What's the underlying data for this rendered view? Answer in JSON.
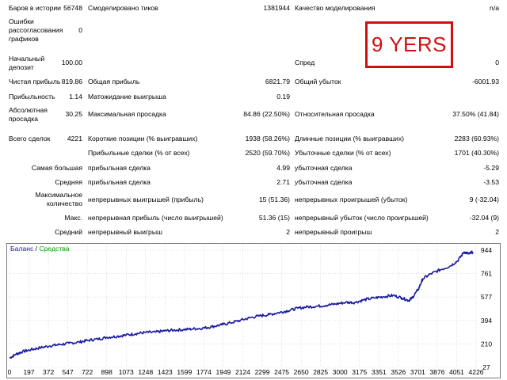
{
  "stamp": {
    "text": "9 YERS"
  },
  "report": {
    "bars_label": "Баров в истории",
    "bars": "56748",
    "ticks_label": "Смоделировано тиков",
    "ticks": "1381944",
    "quality_label": "Качество моделирования",
    "quality": "n/a",
    "errors_label": "Ошибки рассогласования графиков",
    "errors": "0",
    "deposit_label": "Начальный депозит",
    "deposit": "100.00",
    "spread_label": "Спред",
    "spread": "0",
    "netprofit_label": "Чистая прибыль",
    "netprofit": "819.86",
    "grossprofit_label": "Общая прибыль",
    "grossprofit": "6821.79",
    "grossloss_label": "Общий убыток",
    "grossloss": "-6001.93",
    "pf_label": "Прибыльность",
    "pf": "1.14",
    "exp_label": "Матожидание выигрыша",
    "exp": "0.19",
    "absdd_label": "Абсолютная просадка",
    "absdd": "30.25",
    "maxdd_label": "Максимальная просадка",
    "maxdd": "84.86 (22.50%)",
    "reldd_label": "Относительная просадка",
    "reldd": "37.50% (41.84)",
    "total_label": "Всего сделок",
    "total": "4221",
    "short_label": "Короткие позиции (% выигравших)",
    "short": "1938 (58.26%)",
    "long_label": "Длинные позиции (% выигравших)",
    "long": "2283 (60.93%)",
    "wins_label": "Прибыльные сделки (% от всех)",
    "wins": "2520 (59.70%)",
    "losses_label": "Убыточные сделки (% от всех)",
    "losses": "1701 (40.30%)",
    "largest_label": "Самая большая",
    "largest_win_label": "прибыльная сделка",
    "largest_win": "4.99",
    "largest_loss_label": "убыточная сделка",
    "largest_loss": "-5.29",
    "avg_label": "Средняя",
    "avg_win_label": "прибыльная сделка",
    "avg_win": "2.71",
    "avg_loss_label": "убыточная сделка",
    "avg_loss": "-3.53",
    "maxcount_label": "Максимальное количество",
    "maxcons_wins_label": "непрерывных выигрышей (прибыль)",
    "maxcons_wins": "15 (51.36)",
    "maxcons_losses_label": "непрерывных проигрышей (убыток)",
    "maxcons_losses": "9 (-32.04)",
    "max_label": "Макс.",
    "maxprofit_label": "непрерывная прибыль (число выигрышей)",
    "maxprofit": "51.36 (15)",
    "maxloss_label": "непрерывный убыток (число проигрышей)",
    "maxloss": "-32.04 (9)",
    "average_label": "Средний",
    "avg_cons_wins_label": "непрерывный выигрыш",
    "avg_cons_wins": "2",
    "avg_cons_losses_label": "непрерывный проигрыш",
    "avg_cons_losses": "2"
  },
  "chart_data": {
    "type": "line",
    "legend": {
      "balance": "Баланс",
      "sep": " / ",
      "equity": "Средства"
    },
    "colors": {
      "balance": "#1a1a9c",
      "equity": "#00a000",
      "grid": "#c8c8c8"
    },
    "x_ticks": [
      "0",
      "197",
      "372",
      "547",
      "722",
      "898",
      "1073",
      "1248",
      "1423",
      "1599",
      "1774",
      "1949",
      "2124",
      "2299",
      "2475",
      "2650",
      "2825",
      "3000",
      "3175",
      "3351",
      "3526",
      "3701",
      "3876",
      "4051",
      "4226"
    ],
    "y_ticks": [
      "944",
      "761",
      "577",
      "394",
      "210",
      "27"
    ],
    "xlim": [
      0,
      4290
    ],
    "ylim": [
      27,
      944
    ],
    "series": [
      {
        "name": "Баланс",
        "x": [
          0,
          60,
          120,
          197,
          280,
          372,
          460,
          547,
          640,
          722,
          810,
          898,
          990,
          1073,
          1160,
          1248,
          1340,
          1423,
          1510,
          1599,
          1690,
          1774,
          1860,
          1949,
          2030,
          2124,
          2210,
          2299,
          2390,
          2475,
          2560,
          2650,
          2740,
          2825,
          2910,
          3000,
          3090,
          3175,
          3260,
          3351,
          3440,
          3526,
          3610,
          3670,
          3701,
          3760,
          3800,
          3876,
          3960,
          4051,
          4120,
          4180,
          4226,
          4260
        ],
        "y": [
          100,
          130,
          150,
          165,
          180,
          195,
          205,
          215,
          225,
          238,
          248,
          262,
          270,
          280,
          290,
          300,
          302,
          312,
          318,
          322,
          328,
          333,
          345,
          360,
          375,
          395,
          415,
          430,
          440,
          455,
          470,
          490,
          500,
          505,
          512,
          523,
          535,
          535,
          555,
          570,
          580,
          590,
          570,
          550,
          570,
          640,
          720,
          760,
          790,
          820,
          860,
          930,
          915,
          930
        ]
      }
    ]
  }
}
